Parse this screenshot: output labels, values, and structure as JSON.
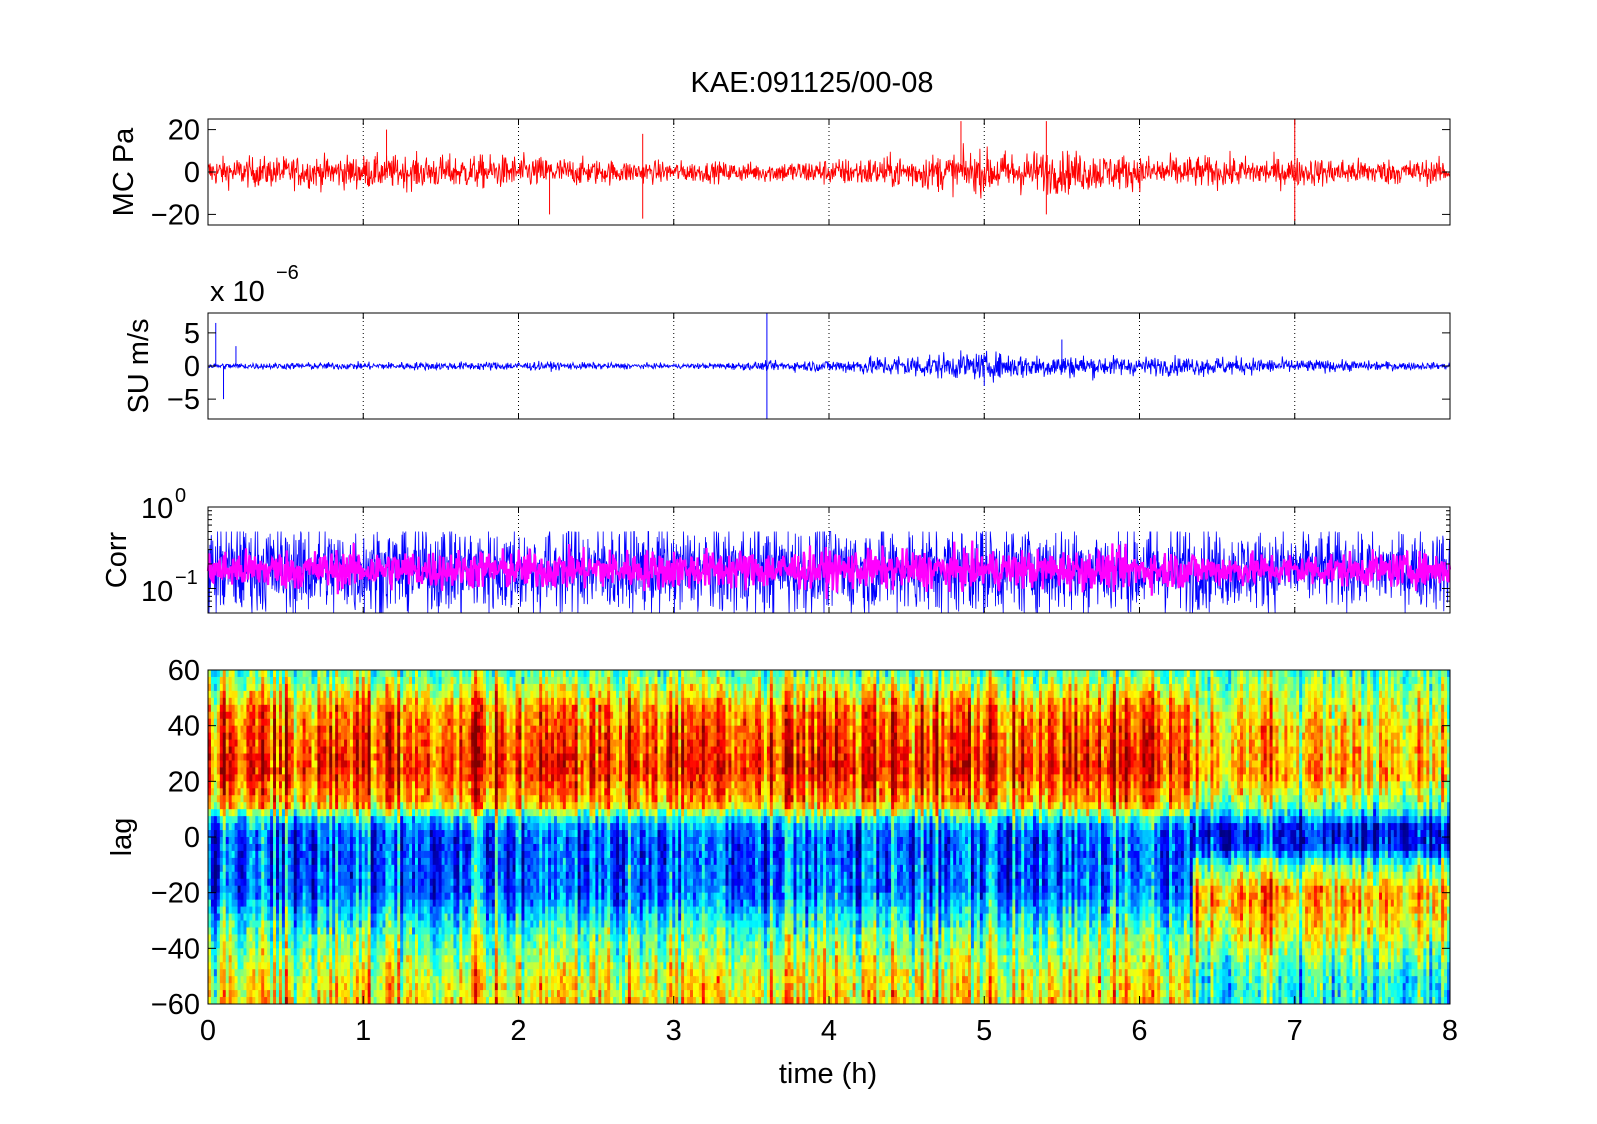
{
  "title": "KAE:091125/00-08",
  "chart_data": [
    {
      "type": "line",
      "panel": "pressure",
      "ylabel": "MC Pa",
      "ylim": [
        -25,
        25
      ],
      "yticks": [
        20,
        0,
        -20
      ],
      "ytick_labels": [
        "20",
        "0",
        "−20"
      ],
      "xlim": [
        0,
        8
      ],
      "grid_x": true,
      "series": [
        {
          "color": "#ff0000",
          "noise_amplitude_profile": [
            [
              0,
              6
            ],
            [
              1,
              7
            ],
            [
              2,
              7
            ],
            [
              2.6,
              5
            ],
            [
              3.5,
              4
            ],
            [
              4.5,
              7
            ],
            [
              5,
              9
            ],
            [
              5.5,
              9
            ],
            [
              6,
              7
            ],
            [
              7,
              6
            ],
            [
              8,
              5
            ]
          ],
          "spikes": [
            [
              1.15,
              20
            ],
            [
              2.8,
              18
            ],
            [
              4.85,
              24
            ],
            [
              5.4,
              24
            ],
            [
              7.0,
              25
            ],
            [
              2.2,
              -20
            ],
            [
              2.8,
              -22
            ],
            [
              5.4,
              -20
            ],
            [
              7.0,
              -23
            ]
          ]
        }
      ]
    },
    {
      "type": "line",
      "panel": "velocity",
      "ylabel": "SU m/s",
      "ylim": [
        -8,
        8
      ],
      "yticks": [
        5,
        0,
        -5
      ],
      "ytick_labels": [
        "5",
        "0",
        "−5"
      ],
      "y_exponent_label": "x 10",
      "y_exponent": "−6",
      "xlim": [
        0,
        8
      ],
      "grid_x": true,
      "series": [
        {
          "color": "#0000ff",
          "noise_amplitude_profile": [
            [
              0,
              0.4
            ],
            [
              1,
              0.5
            ],
            [
              2,
              0.6
            ],
            [
              3,
              0.3
            ],
            [
              4,
              0.8
            ],
            [
              4.5,
              1.6
            ],
            [
              5,
              1.8
            ],
            [
              5.5,
              1.6
            ],
            [
              6,
              1.2
            ],
            [
              6.5,
              1.3
            ],
            [
              7,
              0.9
            ],
            [
              8,
              0.4
            ]
          ],
          "spikes": [
            [
              0.05,
              6.5
            ],
            [
              0.1,
              -5
            ],
            [
              0.18,
              3
            ],
            [
              3.6,
              8
            ],
            [
              3.6,
              -8
            ],
            [
              5.5,
              4
            ],
            [
              5.0,
              -3
            ]
          ]
        }
      ]
    },
    {
      "type": "line",
      "panel": "correlation",
      "ylabel": "Corr",
      "yscale": "log",
      "ylim": [
        0.05,
        1
      ],
      "ytick_labels": [
        "10",
        "10"
      ],
      "ytick_exponents": [
        "0",
        "−1"
      ],
      "xlim": [
        0,
        8
      ],
      "grid_x": true,
      "series": [
        {
          "color": "#0000ff",
          "level": 0.17,
          "spread": 0.12
        },
        {
          "color": "#ff00ff",
          "level": 0.17,
          "spread": 0.05
        }
      ]
    },
    {
      "type": "heatmap",
      "panel": "lag",
      "ylabel": "lag",
      "xlabel": "time (h)",
      "ylim": [
        -60,
        60
      ],
      "yticks": [
        60,
        40,
        20,
        0,
        -20,
        -40,
        -60
      ],
      "ytick_labels": [
        "60",
        "40",
        "20",
        "0",
        "−20",
        "−40",
        "−60"
      ],
      "xlim": [
        0,
        8
      ],
      "xticks": [
        0,
        1,
        2,
        3,
        4,
        5,
        6,
        7,
        8
      ],
      "xtick_labels": [
        "0",
        "1",
        "2",
        "3",
        "4",
        "5",
        "6",
        "7",
        "8"
      ],
      "colormap": "jet",
      "regime_change_x": 6.35,
      "profile_before": [
        [
          60,
          0.45
        ],
        [
          45,
          0.75
        ],
        [
          25,
          0.85
        ],
        [
          12,
          0.7
        ],
        [
          5,
          0.3
        ],
        [
          0,
          0.2
        ],
        [
          -20,
          0.22
        ],
        [
          -35,
          0.45
        ],
        [
          -50,
          0.6
        ],
        [
          -60,
          0.65
        ]
      ],
      "profile_after": [
        [
          60,
          0.45
        ],
        [
          40,
          0.65
        ],
        [
          22,
          0.7
        ],
        [
          10,
          0.45
        ],
        [
          3,
          0.1
        ],
        [
          -3,
          0.12
        ],
        [
          -10,
          0.45
        ],
        [
          -20,
          0.72
        ],
        [
          -35,
          0.6
        ],
        [
          -50,
          0.4
        ],
        [
          -60,
          0.38
        ]
      ]
    }
  ]
}
